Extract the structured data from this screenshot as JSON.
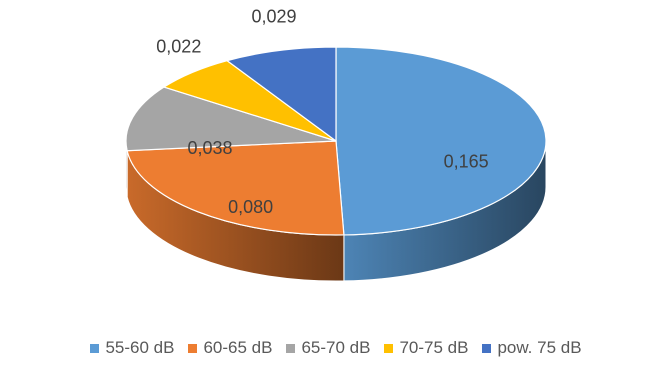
{
  "chart_data": {
    "type": "pie",
    "title": "",
    "categories": [
      "55-60 dB",
      "60-65 dB",
      "65-70 dB",
      "70-75 dB",
      "pow. 75 dB"
    ],
    "values": [
      0.165,
      0.08,
      0.038,
      0.022,
      0.029
    ],
    "labels": [
      "0,165",
      "0,080",
      "0,038",
      "0,022",
      "0,029"
    ],
    "colors": [
      "#5B9BD5",
      "#ED7D31",
      "#A5A5A5",
      "#FFC000",
      "#4472C4"
    ],
    "legend_position": "bottom",
    "style": "3d"
  }
}
